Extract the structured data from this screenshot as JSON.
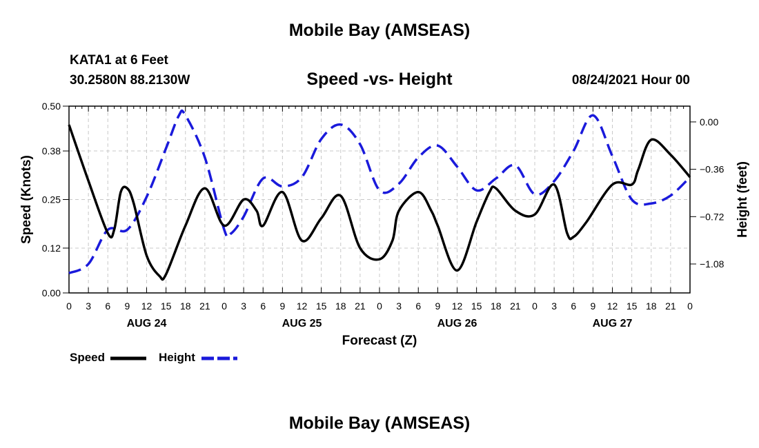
{
  "page": {
    "top_title": "Mobile Bay (AMSEAS)",
    "bottom_title": "Mobile Bay (AMSEAS)",
    "station": "KATA1 at 6 Feet",
    "coords": "30.2580N  88.2130W",
    "run_date": "08/24/2021 Hour 00"
  },
  "chart_data": {
    "type": "line",
    "title": "Speed -vs- Height",
    "xlabel": "Forecast (Z)",
    "ylabel_left": "Speed (Knots)",
    "ylabel_right": "Height (feet)",
    "x_unit": "hours since 08/24/2021 00Z",
    "xlim": [
      0,
      96
    ],
    "x_ticks": [
      0,
      3,
      6,
      9,
      12,
      15,
      18,
      21,
      24,
      27,
      30,
      33,
      36,
      39,
      42,
      45,
      48,
      51,
      54,
      57,
      60,
      63,
      66,
      69,
      72,
      75,
      78,
      81,
      84,
      87,
      90,
      93,
      96
    ],
    "x_tick_labels": [
      "0",
      "3",
      "6",
      "9",
      "12",
      "15",
      "18",
      "21",
      "0",
      "3",
      "6",
      "9",
      "12",
      "15",
      "18",
      "21",
      "0",
      "3",
      "6",
      "9",
      "12",
      "15",
      "18",
      "21",
      "0",
      "3",
      "6",
      "9",
      "12",
      "15",
      "18",
      "21",
      "0"
    ],
    "day_labels": [
      {
        "x": 12,
        "label": "AUG 24"
      },
      {
        "x": 36,
        "label": "AUG 25"
      },
      {
        "x": 60,
        "label": "AUG 26"
      },
      {
        "x": 84,
        "label": "AUG 27"
      }
    ],
    "ylim_left": [
      0,
      0.5
    ],
    "y_ticks_left": [
      0.0,
      0.12,
      0.25,
      0.38,
      0.5
    ],
    "y_tick_labels_left": [
      "0.00",
      "0.12",
      "0.25",
      "0.38",
      "0.50"
    ],
    "ylim_right": [
      -1.3,
      0.12
    ],
    "y_ticks_right": [
      0.0,
      -0.36,
      -0.72,
      -1.08
    ],
    "y_tick_labels_right": [
      "0.00",
      "−0.36",
      "−0.72",
      "−1.08"
    ],
    "grid": true,
    "legend": "bottom-left",
    "series": [
      {
        "name": "Speed",
        "axis": "left",
        "color": "#000000",
        "dash": "solid",
        "x": [
          0,
          3,
          6,
          7,
          8,
          9,
          10,
          12,
          14,
          15,
          18,
          21,
          24,
          27,
          29,
          30,
          33,
          36,
          39,
          42,
          45,
          48,
          50,
          51,
          54,
          56,
          57,
          60,
          63,
          65,
          66,
          69,
          72,
          75,
          77,
          78,
          80,
          84,
          87,
          88,
          90,
          93,
          96
        ],
        "y": [
          0.45,
          0.3,
          0.16,
          0.17,
          0.27,
          0.28,
          0.24,
          0.1,
          0.045,
          0.05,
          0.18,
          0.28,
          0.18,
          0.25,
          0.22,
          0.18,
          0.27,
          0.14,
          0.2,
          0.26,
          0.12,
          0.09,
          0.14,
          0.22,
          0.27,
          0.22,
          0.18,
          0.06,
          0.19,
          0.27,
          0.28,
          0.22,
          0.21,
          0.29,
          0.16,
          0.15,
          0.19,
          0.29,
          0.29,
          0.33,
          0.41,
          0.37,
          0.31
        ]
      },
      {
        "name": "Height",
        "axis": "right",
        "color": "#1a1adb",
        "dash": "dashed",
        "x": [
          0,
          3,
          6,
          9,
          12,
          15,
          17,
          18,
          21,
          24,
          25,
          27,
          30,
          33,
          36,
          39,
          42,
          45,
          48,
          51,
          54,
          57,
          60,
          63,
          66,
          69,
          72,
          75,
          78,
          81,
          84,
          87,
          90,
          93,
          96
        ],
        "y": [
          -1.15,
          -1.08,
          -0.82,
          -0.82,
          -0.57,
          -0.2,
          0.05,
          0.05,
          -0.27,
          -0.82,
          -0.85,
          -0.72,
          -0.43,
          -0.49,
          -0.42,
          -0.13,
          -0.02,
          -0.17,
          -0.52,
          -0.47,
          -0.27,
          -0.18,
          -0.34,
          -0.52,
          -0.43,
          -0.33,
          -0.55,
          -0.45,
          -0.22,
          0.05,
          -0.26,
          -0.59,
          -0.62,
          -0.56,
          -0.42
        ]
      }
    ]
  }
}
